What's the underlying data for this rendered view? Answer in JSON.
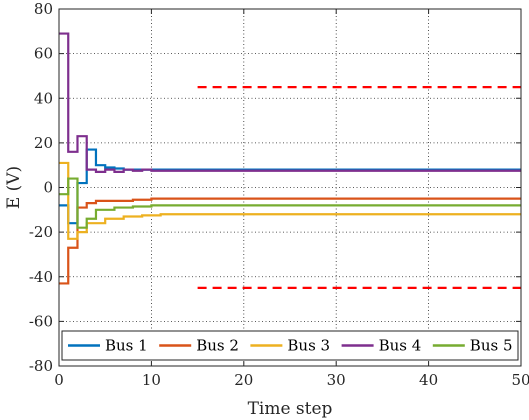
{
  "chart_data": {
    "type": "line",
    "xlabel": "Time step",
    "ylabel": "E (V)",
    "xlim": [
      0,
      50
    ],
    "ylim": [
      -80,
      80
    ],
    "xticks": [
      0,
      10,
      20,
      30,
      40,
      50
    ],
    "yticks": [
      -80,
      -60,
      -40,
      -20,
      0,
      20,
      40,
      60,
      80
    ],
    "grid": true,
    "grid_style": "dotted",
    "legend_position": "bottom",
    "series": [
      {
        "name": "Bus 1",
        "color": "#0072BD",
        "step": true,
        "x": [
          0,
          1,
          2,
          3,
          4,
          5,
          6,
          7,
          8,
          10,
          50
        ],
        "y": [
          -8,
          -16,
          2,
          17,
          10,
          9,
          8.5,
          8,
          8,
          8,
          8
        ]
      },
      {
        "name": "Bus 2",
        "color": "#D95319",
        "step": true,
        "x": [
          0,
          1,
          2,
          3,
          4,
          6,
          8,
          10,
          50
        ],
        "y": [
          -43,
          -27,
          -9,
          -7,
          -6,
          -6,
          -5.5,
          -5,
          -5
        ]
      },
      {
        "name": "Bus 3",
        "color": "#EDB120",
        "step": true,
        "x": [
          0,
          1,
          2,
          3,
          5,
          7,
          9,
          11,
          50
        ],
        "y": [
          11,
          -23,
          -20,
          -16,
          -14,
          -13,
          -12.5,
          -12,
          -12
        ]
      },
      {
        "name": "Bus 4",
        "color": "#7E2F8E",
        "step": true,
        "x": [
          0,
          1,
          2,
          3,
          4,
          5,
          6,
          7,
          8,
          9,
          10,
          50
        ],
        "y": [
          69,
          16,
          23,
          8,
          7,
          8,
          7,
          8,
          7.5,
          8,
          7.5,
          7.5
        ]
      },
      {
        "name": "Bus 5",
        "color": "#77AC30",
        "step": true,
        "x": [
          0,
          1,
          2,
          3,
          4,
          6,
          8,
          10,
          50
        ],
        "y": [
          -3,
          4,
          -18,
          -14,
          -10,
          -9,
          -8.5,
          -8,
          -8
        ]
      }
    ],
    "reference_lines": [
      {
        "x": [
          15,
          50
        ],
        "y": 45,
        "color": "#FF0000",
        "style": "dashed"
      },
      {
        "x": [
          15,
          50
        ],
        "y": -45,
        "color": "#FF0000",
        "style": "dashed"
      }
    ]
  }
}
